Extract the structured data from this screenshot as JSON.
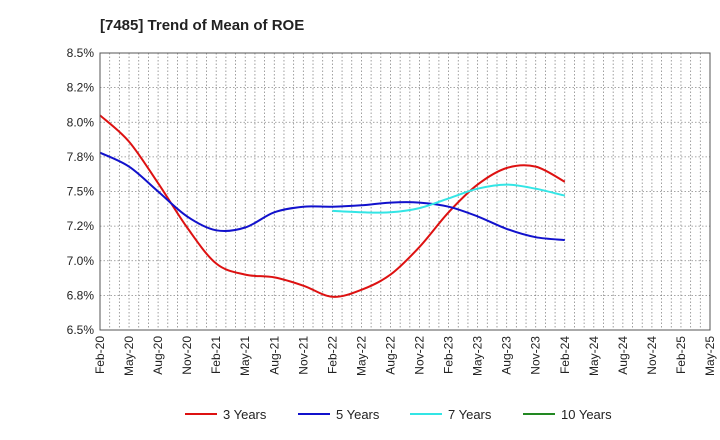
{
  "chart_data": {
    "type": "line",
    "title": "[7485]  Trend of Mean of ROE",
    "xlabel": "",
    "ylabel": "",
    "ylim": [
      6.5,
      8.5
    ],
    "y_ticks": [
      "6.5%",
      "6.8%",
      "7.0%",
      "7.2%",
      "7.5%",
      "7.8%",
      "8.0%",
      "8.2%",
      "8.5%"
    ],
    "x_ticks": [
      "Feb-20",
      "May-20",
      "Aug-20",
      "Nov-20",
      "Feb-21",
      "May-21",
      "Aug-21",
      "Nov-21",
      "Feb-22",
      "May-22",
      "Aug-22",
      "Nov-22",
      "Feb-23",
      "May-23",
      "Aug-23",
      "Nov-23",
      "Feb-24",
      "May-24",
      "Aug-24",
      "Nov-24",
      "Feb-25",
      "May-25"
    ],
    "grid": true,
    "legend_position": "bottom",
    "series": [
      {
        "name": "3 Years",
        "color": "#dd1111",
        "values": [
          8.05,
          7.86,
          7.56,
          7.24,
          6.98,
          6.9,
          6.88,
          6.82,
          6.74,
          6.79,
          6.9,
          7.1,
          7.35,
          7.55,
          7.67,
          7.68,
          7.57
        ]
      },
      {
        "name": "5 Years",
        "color": "#1111cc",
        "values": [
          7.78,
          7.68,
          7.5,
          7.32,
          7.22,
          7.24,
          7.35,
          7.39,
          7.39,
          7.4,
          7.42,
          7.42,
          7.39,
          7.32,
          7.23,
          7.17,
          7.15
        ]
      },
      {
        "name": "7 Years",
        "color": "#33e5e5",
        "values": [
          null,
          null,
          null,
          null,
          null,
          null,
          null,
          null,
          7.36,
          7.35,
          7.35,
          7.38,
          7.45,
          7.52,
          7.55,
          7.52,
          7.47
        ]
      },
      {
        "name": "10 Years",
        "color": "#228822",
        "values": [
          null,
          null,
          null,
          null,
          null,
          null,
          null,
          null,
          null,
          null,
          null,
          null,
          null,
          null,
          null,
          null,
          null
        ]
      }
    ]
  }
}
